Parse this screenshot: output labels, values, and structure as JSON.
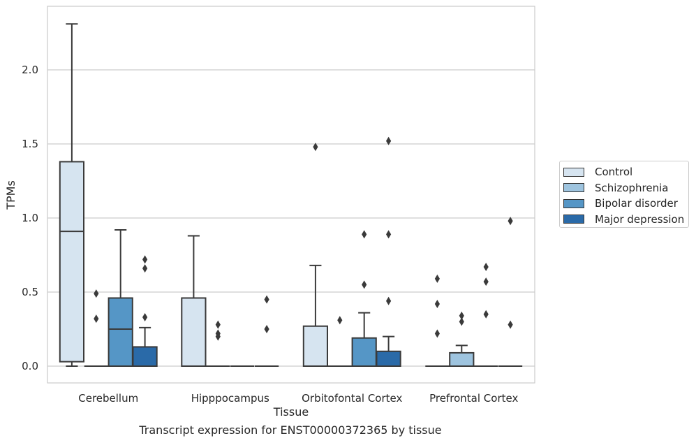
{
  "chart_data": {
    "type": "boxplot",
    "title": "",
    "caption": "Transcript expression for ENST00000372365 by tissue",
    "xlabel": "Tissue",
    "ylabel": "TPMs",
    "ylim": [
      -0.11,
      2.44
    ],
    "yticks": [
      "0.0",
      "0.5",
      "1.0",
      "1.5",
      "2.0"
    ],
    "grid": "horizontal",
    "legend_position": "right",
    "categories": [
      "Cerebellum",
      "Hipppocampus",
      "Orbitofontal Cortex",
      "Prefrontal Cortex"
    ],
    "series": [
      {
        "name": "Control",
        "color": "#d6e4f0",
        "boxes": [
          {
            "q1": 0.03,
            "median": 0.91,
            "q3": 1.38,
            "whisker_low": 0.0,
            "whisker_high": 2.31,
            "outliers": []
          },
          {
            "q1": 0.0,
            "median": 0.0,
            "q3": 0.46,
            "whisker_low": 0.0,
            "whisker_high": 0.88,
            "outliers": []
          },
          {
            "q1": 0.0,
            "median": 0.0,
            "q3": 0.27,
            "whisker_low": 0.0,
            "whisker_high": 0.68,
            "outliers": [
              1.48
            ]
          },
          {
            "q1": 0.0,
            "median": 0.0,
            "q3": 0.0,
            "whisker_low": 0.0,
            "whisker_high": 0.0,
            "outliers": [
              0.22,
              0.42,
              0.59
            ]
          }
        ]
      },
      {
        "name": "Schizophrenia",
        "color": "#9ec4df",
        "boxes": [
          {
            "q1": 0.0,
            "median": 0.0,
            "q3": 0.0,
            "whisker_low": 0.0,
            "whisker_high": 0.0,
            "outliers": [
              0.32,
              0.49
            ]
          },
          {
            "q1": 0.0,
            "median": 0.0,
            "q3": 0.0,
            "whisker_low": 0.0,
            "whisker_high": 0.0,
            "outliers": [
              0.2,
              0.22,
              0.28
            ]
          },
          {
            "q1": 0.0,
            "median": 0.0,
            "q3": 0.0,
            "whisker_low": 0.0,
            "whisker_high": 0.0,
            "outliers": [
              0.31
            ]
          },
          {
            "q1": 0.0,
            "median": 0.0,
            "q3": 0.09,
            "whisker_low": 0.0,
            "whisker_high": 0.14,
            "outliers": [
              0.3,
              0.34
            ]
          }
        ]
      },
      {
        "name": "Bipolar disorder",
        "color": "#5596c6",
        "boxes": [
          {
            "q1": 0.0,
            "median": 0.25,
            "q3": 0.46,
            "whisker_low": 0.0,
            "whisker_high": 0.92,
            "outliers": []
          },
          {
            "q1": 0.0,
            "median": 0.0,
            "q3": 0.0,
            "whisker_low": 0.0,
            "whisker_high": 0.0,
            "outliers": []
          },
          {
            "q1": 0.0,
            "median": 0.0,
            "q3": 0.19,
            "whisker_low": 0.0,
            "whisker_high": 0.36,
            "outliers": [
              0.55,
              0.89
            ]
          },
          {
            "q1": 0.0,
            "median": 0.0,
            "q3": 0.0,
            "whisker_low": 0.0,
            "whisker_high": 0.0,
            "outliers": [
              0.35,
              0.57,
              0.67
            ]
          }
        ]
      },
      {
        "name": "Major depression",
        "color": "#2a6aa8",
        "boxes": [
          {
            "q1": 0.0,
            "median": 0.0,
            "q3": 0.13,
            "whisker_low": 0.0,
            "whisker_high": 0.26,
            "outliers": [
              0.33,
              0.66,
              0.72
            ]
          },
          {
            "q1": 0.0,
            "median": 0.0,
            "q3": 0.0,
            "whisker_low": 0.0,
            "whisker_high": 0.0,
            "outliers": [
              0.25,
              0.45
            ]
          },
          {
            "q1": 0.0,
            "median": 0.0,
            "q3": 0.1,
            "whisker_low": 0.0,
            "whisker_high": 0.2,
            "outliers": [
              0.44,
              0.89,
              1.52
            ]
          },
          {
            "q1": 0.0,
            "median": 0.0,
            "q3": 0.0,
            "whisker_low": 0.0,
            "whisker_high": 0.0,
            "outliers": [
              0.28,
              0.98
            ]
          }
        ]
      }
    ]
  }
}
